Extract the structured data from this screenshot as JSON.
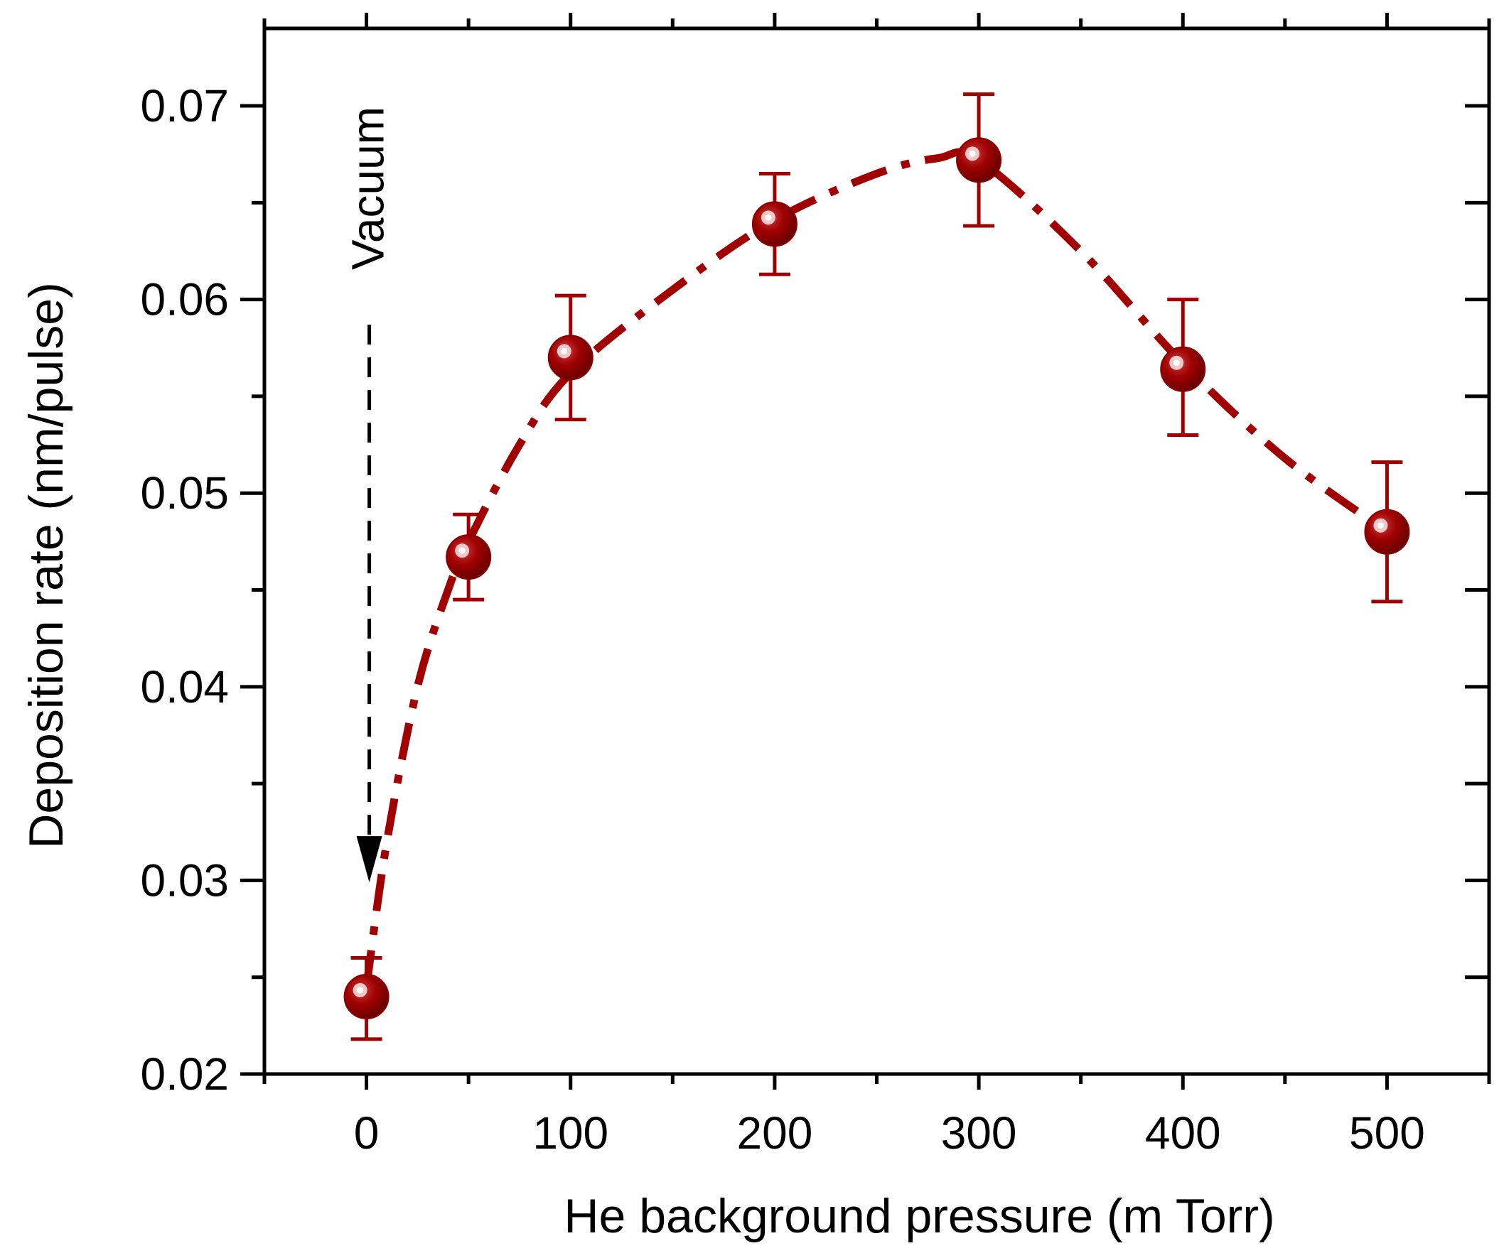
{
  "chart_data": {
    "type": "scatter",
    "title": "",
    "xlabel": "He background pressure (m Torr)",
    "ylabel": "Deposition rate (nm/pulse)",
    "xlim": [
      -50,
      550
    ],
    "ylim": [
      0.02,
      0.074
    ],
    "x_ticks": [
      0,
      100,
      200,
      300,
      400,
      500
    ],
    "x_tick_labels": [
      "0",
      "100",
      "200",
      "300",
      "400",
      "500"
    ],
    "x_minor_ticks": [
      -50,
      50,
      150,
      250,
      350,
      450,
      550
    ],
    "y_ticks": [
      0.02,
      0.03,
      0.04,
      0.05,
      0.06,
      0.07
    ],
    "y_tick_labels": [
      "0.02",
      "0.03",
      "0.04",
      "0.05",
      "0.06",
      "0.07"
    ],
    "y_minor_ticks": [
      0.025,
      0.035,
      0.045,
      0.055,
      0.065
    ],
    "grid": false,
    "series": [
      {
        "name": "Deposition rate",
        "color": "#a00000",
        "x": [
          0,
          50,
          100,
          200,
          300,
          400,
          500
        ],
        "y": [
          0.024,
          0.0467,
          0.057,
          0.0639,
          0.0672,
          0.0564,
          0.048
        ],
        "err_low": [
          0.0022,
          0.0022,
          0.0032,
          0.0026,
          0.0034,
          0.0034,
          0.0036
        ],
        "err_high": [
          0.002,
          0.0022,
          0.0032,
          0.0026,
          0.0034,
          0.0036,
          0.0036
        ]
      }
    ],
    "trend": {
      "style": "dash-dot",
      "color": "#a00000",
      "x": [
        0,
        10,
        25,
        40,
        50,
        75,
        100,
        150,
        200,
        250,
        280,
        300,
        350,
        400,
        450,
        500
      ],
      "y": [
        0.0245,
        0.032,
        0.04,
        0.045,
        0.0475,
        0.0525,
        0.0562,
        0.0605,
        0.0641,
        0.0665,
        0.0673,
        0.0672,
        0.0625,
        0.0567,
        0.0518,
        0.048
      ]
    },
    "annotation": {
      "text": "Vacuum",
      "color": "#000000",
      "arrow_x": 0,
      "arrow_from_y": 0.0587,
      "arrow_to_y": 0.0299
    }
  }
}
